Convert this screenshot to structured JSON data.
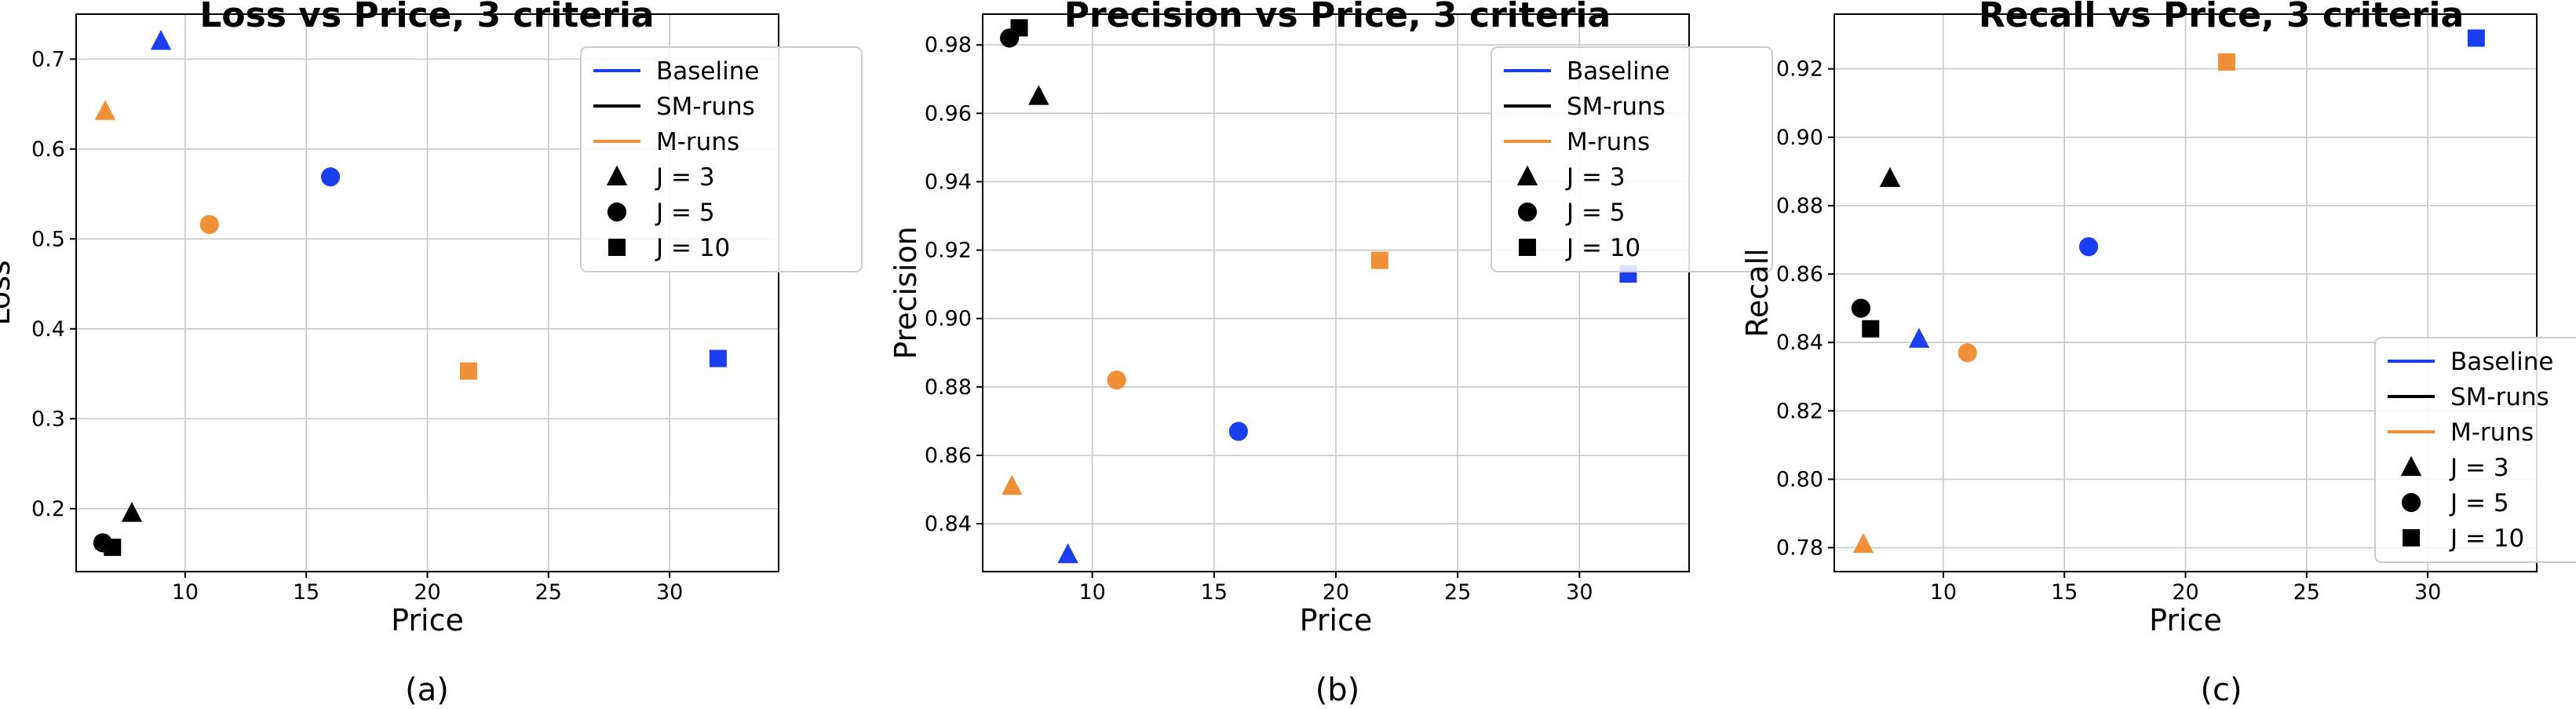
{
  "colors": {
    "baseline": "#1a3ef0",
    "sm": "#000000",
    "m": "#f0913a"
  },
  "chart_data": [
    {
      "type": "scatter",
      "title": "Loss vs Price, 3 criteria",
      "xlabel": "Price",
      "ylabel": "Loss",
      "caption": "(a)",
      "xlim": [
        5.5,
        34.5
      ],
      "ylim": [
        0.13,
        0.75
      ],
      "xticks": [
        10,
        15,
        20,
        25,
        30
      ],
      "yticks": [
        0.2,
        0.3,
        0.4,
        0.5,
        0.6,
        0.7
      ],
      "xticklabels": [
        "10",
        "15",
        "20",
        "25",
        "30"
      ],
      "yticklabels": [
        "0.2",
        "0.3",
        "0.4",
        "0.5",
        "0.6",
        "0.7"
      ],
      "grid": true,
      "legend": {
        "location": "upper right",
        "entries": [
          {
            "label": "Baseline",
            "kind": "line",
            "series": "baseline"
          },
          {
            "label": "SM-runs",
            "kind": "line",
            "series": "sm"
          },
          {
            "label": "M-runs",
            "kind": "line",
            "series": "m"
          },
          {
            "label": "J = 3",
            "kind": "marker",
            "marker": "triangle"
          },
          {
            "label": "J = 5",
            "kind": "marker",
            "marker": "circle"
          },
          {
            "label": "J = 10",
            "kind": "marker",
            "marker": "square"
          }
        ]
      },
      "points": [
        {
          "series": "baseline",
          "J": 3,
          "marker": "triangle",
          "x": 9.0,
          "y": 0.72
        },
        {
          "series": "baseline",
          "J": 5,
          "marker": "circle",
          "x": 16.0,
          "y": 0.569
        },
        {
          "series": "baseline",
          "J": 10,
          "marker": "square",
          "x": 32.0,
          "y": 0.367
        },
        {
          "series": "sm",
          "J": 3,
          "marker": "triangle",
          "x": 7.8,
          "y": 0.195
        },
        {
          "series": "sm",
          "J": 5,
          "marker": "circle",
          "x": 6.6,
          "y": 0.162
        },
        {
          "series": "sm",
          "J": 10,
          "marker": "square",
          "x": 7.0,
          "y": 0.157
        },
        {
          "series": "m",
          "J": 3,
          "marker": "triangle",
          "x": 6.7,
          "y": 0.642
        },
        {
          "series": "m",
          "J": 5,
          "marker": "circle",
          "x": 11.0,
          "y": 0.516
        },
        {
          "series": "m",
          "J": 10,
          "marker": "square",
          "x": 21.7,
          "y": 0.353
        }
      ]
    },
    {
      "type": "scatter",
      "title": "Precision vs Price, 3 criteria",
      "xlabel": "Price",
      "ylabel": "Precision",
      "caption": "(b)",
      "xlim": [
        5.5,
        34.5
      ],
      "ylim": [
        0.826,
        0.989
      ],
      "xticks": [
        10,
        15,
        20,
        25,
        30
      ],
      "yticks": [
        0.84,
        0.86,
        0.88,
        0.9,
        0.92,
        0.94,
        0.96,
        0.98
      ],
      "xticklabels": [
        "10",
        "15",
        "20",
        "25",
        "30"
      ],
      "yticklabels": [
        "0.84",
        "0.86",
        "0.88",
        "0.90",
        "0.92",
        "0.94",
        "0.96",
        "0.98"
      ],
      "grid": true,
      "legend": {
        "location": "upper right",
        "entries": [
          {
            "label": "Baseline",
            "kind": "line",
            "series": "baseline"
          },
          {
            "label": "SM-runs",
            "kind": "line",
            "series": "sm"
          },
          {
            "label": "M-runs",
            "kind": "line",
            "series": "m"
          },
          {
            "label": "J = 3",
            "kind": "marker",
            "marker": "triangle"
          },
          {
            "label": "J = 5",
            "kind": "marker",
            "marker": "circle"
          },
          {
            "label": "J = 10",
            "kind": "marker",
            "marker": "square"
          }
        ]
      },
      "points": [
        {
          "series": "baseline",
          "J": 3,
          "marker": "triangle",
          "x": 9.0,
          "y": 0.831
        },
        {
          "series": "baseline",
          "J": 5,
          "marker": "circle",
          "x": 16.0,
          "y": 0.867
        },
        {
          "series": "baseline",
          "J": 10,
          "marker": "square",
          "x": 32.0,
          "y": 0.913
        },
        {
          "series": "sm",
          "J": 3,
          "marker": "triangle",
          "x": 7.8,
          "y": 0.965
        },
        {
          "series": "sm",
          "J": 5,
          "marker": "circle",
          "x": 6.6,
          "y": 0.982
        },
        {
          "series": "sm",
          "J": 10,
          "marker": "square",
          "x": 7.0,
          "y": 0.985
        },
        {
          "series": "m",
          "J": 3,
          "marker": "triangle",
          "x": 6.7,
          "y": 0.851
        },
        {
          "series": "m",
          "J": 5,
          "marker": "circle",
          "x": 11.0,
          "y": 0.882
        },
        {
          "series": "m",
          "J": 10,
          "marker": "square",
          "x": 21.8,
          "y": 0.917
        }
      ]
    },
    {
      "type": "scatter",
      "title": "Recall vs Price, 3 criteria",
      "xlabel": "Price",
      "ylabel": "Recall",
      "caption": "(c)",
      "xlim": [
        5.5,
        34.5
      ],
      "ylim": [
        0.773,
        0.936
      ],
      "xticks": [
        10,
        15,
        20,
        25,
        30
      ],
      "yticks": [
        0.78,
        0.8,
        0.82,
        0.84,
        0.86,
        0.88,
        0.9,
        0.92
      ],
      "xticklabels": [
        "10",
        "15",
        "20",
        "25",
        "30"
      ],
      "yticklabels": [
        "0.78",
        "0.80",
        "0.82",
        "0.84",
        "0.86",
        "0.88",
        "0.90",
        "0.92"
      ],
      "grid": true,
      "legend": {
        "location": "lower right",
        "entries": [
          {
            "label": "Baseline",
            "kind": "line",
            "series": "baseline"
          },
          {
            "label": "SM-runs",
            "kind": "line",
            "series": "sm"
          },
          {
            "label": "M-runs",
            "kind": "line",
            "series": "m"
          },
          {
            "label": "J = 3",
            "kind": "marker",
            "marker": "triangle"
          },
          {
            "label": "J = 5",
            "kind": "marker",
            "marker": "circle"
          },
          {
            "label": "J = 10",
            "kind": "marker",
            "marker": "square"
          }
        ]
      },
      "points": [
        {
          "series": "baseline",
          "J": 3,
          "marker": "triangle",
          "x": 9.0,
          "y": 0.841
        },
        {
          "series": "baseline",
          "J": 5,
          "marker": "circle",
          "x": 16.0,
          "y": 0.868
        },
        {
          "series": "baseline",
          "J": 10,
          "marker": "square",
          "x": 32.0,
          "y": 0.929
        },
        {
          "series": "sm",
          "J": 3,
          "marker": "triangle",
          "x": 7.8,
          "y": 0.888
        },
        {
          "series": "sm",
          "J": 5,
          "marker": "circle",
          "x": 6.6,
          "y": 0.85
        },
        {
          "series": "sm",
          "J": 10,
          "marker": "square",
          "x": 7.0,
          "y": 0.844
        },
        {
          "series": "m",
          "J": 3,
          "marker": "triangle",
          "x": 6.7,
          "y": 0.781
        },
        {
          "series": "m",
          "J": 5,
          "marker": "circle",
          "x": 11.0,
          "y": 0.837
        },
        {
          "series": "m",
          "J": 10,
          "marker": "square",
          "x": 21.7,
          "y": 0.922
        }
      ]
    }
  ]
}
